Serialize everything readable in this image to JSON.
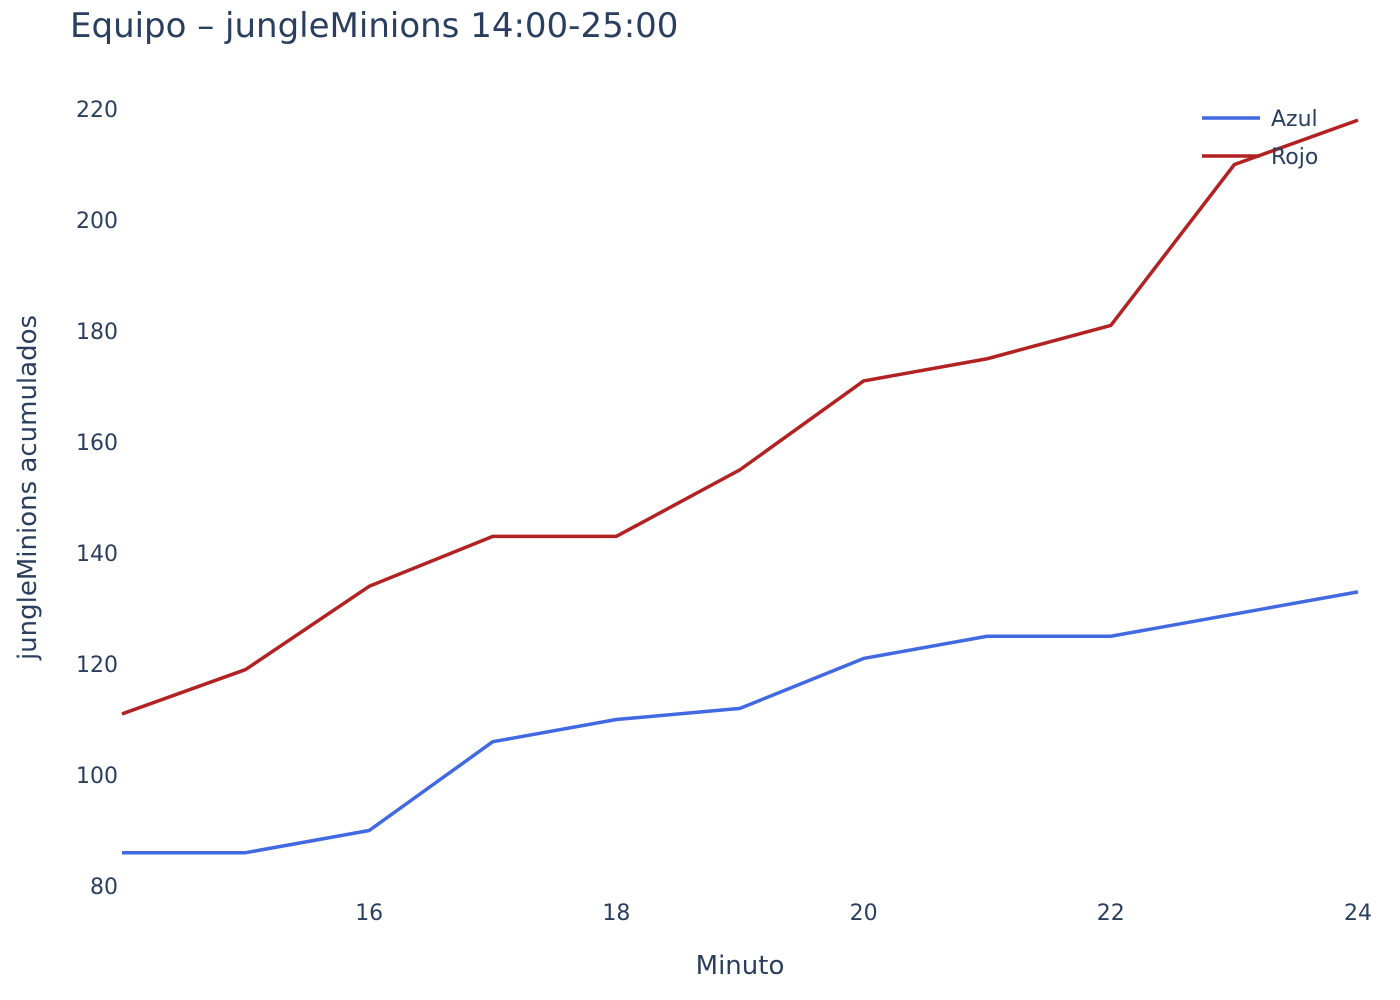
{
  "chart_data": {
    "type": "line",
    "title": "Equipo – jungleMinions 14:00-25:00",
    "xlabel": "Minuto",
    "ylabel": "jungleMinions acumulados",
    "x": [
      14,
      15,
      16,
      17,
      18,
      19,
      20,
      21,
      22,
      23,
      24
    ],
    "xlim": [
      14,
      24
    ],
    "ylim": [
      80,
      220
    ],
    "xticks": [
      16,
      18,
      20,
      22,
      24
    ],
    "yticks": [
      80,
      100,
      120,
      140,
      160,
      180,
      200,
      220
    ],
    "grid": false,
    "legend_position": "top-right",
    "series": [
      {
        "name": "Azul",
        "color": "#4169e1",
        "values": [
          86,
          86,
          90,
          106,
          110,
          112,
          121,
          125,
          125,
          129,
          133
        ]
      },
      {
        "name": "Rojo",
        "color": "#b22222",
        "values": [
          111,
          119,
          134,
          143,
          143,
          155,
          171,
          175,
          181,
          210,
          218
        ]
      }
    ]
  }
}
